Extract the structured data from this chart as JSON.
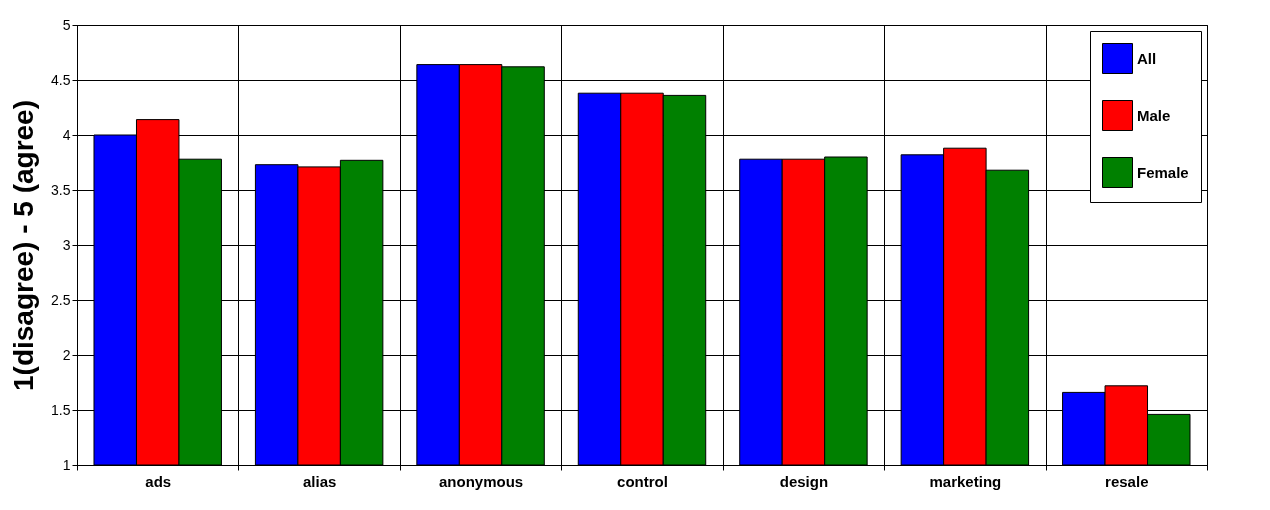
{
  "chart_data": {
    "type": "bar",
    "ylabel": "1(disagree) - 5 (agree)",
    "categories": [
      "ads",
      "alias",
      "anonymous",
      "control",
      "design",
      "marketing",
      "resale"
    ],
    "series": [
      {
        "name": "All",
        "color": "#0000ff",
        "values": [
          4.0,
          3.73,
          4.64,
          4.38,
          3.78,
          3.82,
          1.66
        ]
      },
      {
        "name": "Male",
        "color": "#ff0000",
        "values": [
          4.14,
          3.71,
          4.64,
          4.38,
          3.78,
          3.88,
          1.72
        ]
      },
      {
        "name": "Female",
        "color": "#008000",
        "values": [
          3.78,
          3.77,
          4.62,
          4.36,
          3.8,
          3.68,
          1.46
        ]
      }
    ],
    "ylim": [
      1,
      5
    ],
    "yticks": [
      1,
      1.5,
      2,
      2.5,
      3,
      3.5,
      4,
      4.5,
      5
    ],
    "grid": true,
    "legend": "top right"
  }
}
